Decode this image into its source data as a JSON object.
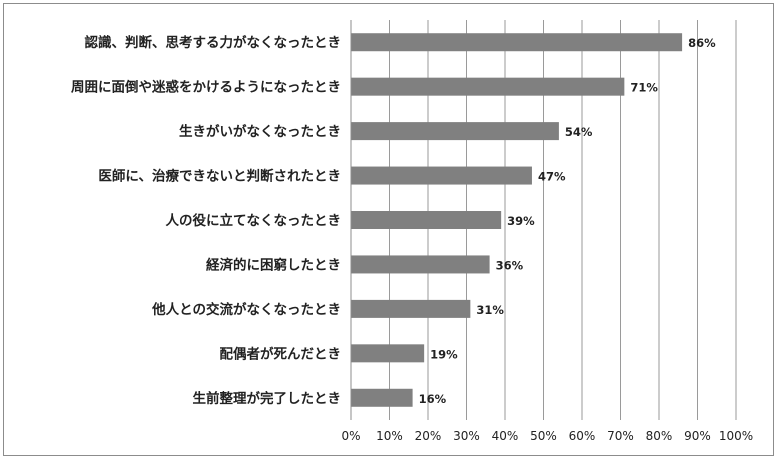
{
  "chart_data": {
    "type": "bar",
    "orientation": "horizontal",
    "categories": [
      "認識、判断、思考する力がなくなったとき",
      "周囲に面倒や迷惑をかけるようになったとき",
      "生きがいがなくなったとき",
      "医師に、治療できないと判断されたとき",
      "人の役に立てなくなったとき",
      "経済的に困窮したとき",
      "他人との交流がなくなったとき",
      "配偶者が死んだとき",
      "生前整理が完了したとき"
    ],
    "values": [
      86,
      71,
      54,
      47,
      39,
      36,
      31,
      19,
      16
    ],
    "value_labels": [
      "86%",
      "71%",
      "54%",
      "47%",
      "39%",
      "36%",
      "31%",
      "19%",
      "16%"
    ],
    "xlim": [
      0,
      100
    ],
    "xticks": [
      "0%",
      "10%",
      "20%",
      "30%",
      "40%",
      "50%",
      "60%",
      "70%",
      "80%",
      "90%",
      "100%"
    ],
    "grid": "vertical",
    "bar_color": "#808080",
    "title": "",
    "xlabel": "",
    "ylabel": ""
  }
}
